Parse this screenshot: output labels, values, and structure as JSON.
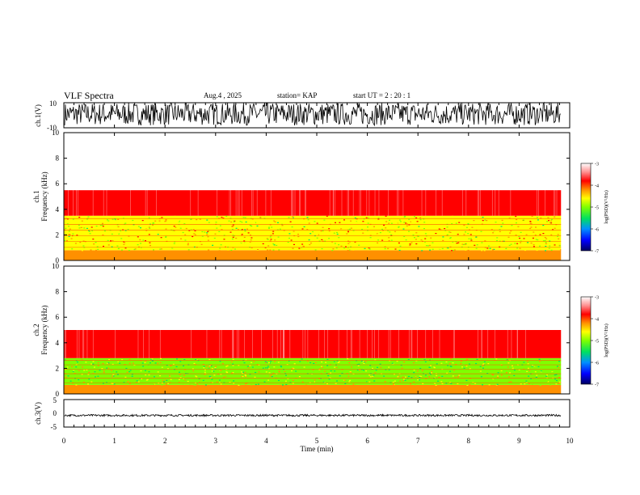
{
  "header": {
    "title": "VLF Spectra",
    "date": "Aug.4 , 2025",
    "station": "station= KAP",
    "start_ut": "start UT = 2 : 20 : 1"
  },
  "chart_data": [
    {
      "type": "line",
      "panel": "ch1-waveform",
      "ylabel": "ch.1(V)",
      "ylim": [
        -10,
        10
      ],
      "yticks": [
        "10",
        "-10"
      ],
      "xlim": [
        0,
        10
      ],
      "note": "dense saturated noise waveform spanning roughly -8 to +10 V"
    },
    {
      "type": "heatmap",
      "panel": "ch1-spectrogram",
      "ylabel": "ch.1\nFrequency (kHz)",
      "ylim": [
        0,
        10
      ],
      "yticks": [
        "0",
        "2",
        "4",
        "6",
        "8",
        "10"
      ],
      "xlim": [
        0,
        9.83
      ],
      "bands": [
        {
          "from_khz": 0,
          "to_khz": 0.8,
          "level": -4.3
        },
        {
          "from_khz": 0.8,
          "to_khz": 3.5,
          "level": -4.8
        },
        {
          "from_khz": 3.5,
          "to_khz": 5.5,
          "level": -3.8
        },
        {
          "from_khz": 5.5,
          "to_khz": 10,
          "level": -3.3
        }
      ],
      "colorbar": {
        "label": "log(PSD)(V²/Hz)",
        "ticks": [
          "-3",
          "-4",
          "-5",
          "-6",
          "-7"
        ],
        "range": [
          -7,
          -3
        ]
      }
    },
    {
      "type": "heatmap",
      "panel": "ch2-spectrogram",
      "ylabel": "ch.2\nFrequency (kHz)",
      "ylim": [
        0,
        10
      ],
      "yticks": [
        "0",
        "2",
        "4",
        "6",
        "8",
        "10"
      ],
      "xlim": [
        0,
        9.83
      ],
      "bands": [
        {
          "from_khz": 0,
          "to_khz": 0.7,
          "level": -4.3
        },
        {
          "from_khz": 0.7,
          "to_khz": 2.8,
          "level": -5.1
        },
        {
          "from_khz": 2.8,
          "to_khz": 5,
          "level": -3.8
        },
        {
          "from_khz": 5,
          "to_khz": 10,
          "level": -3.3
        }
      ],
      "colorbar": {
        "label": "log(PSD)(V²/Hz)",
        "ticks": [
          "-3",
          "-4",
          "-5",
          "-6",
          "-7"
        ],
        "range": [
          -7,
          -3
        ]
      }
    },
    {
      "type": "line",
      "panel": "ch3-waveform",
      "ylabel": "ch.3(V)",
      "ylim": [
        -5,
        5
      ],
      "yticks": [
        "5",
        "0",
        "-5"
      ],
      "xlim": [
        0,
        10
      ],
      "values_range": [
        -1.1,
        -0.4
      ],
      "note": "narrow band of noise around -0.7 V"
    }
  ],
  "x_axis": {
    "label": "Time (min)",
    "ticks": [
      "0",
      "1",
      "2",
      "3",
      "4",
      "5",
      "6",
      "7",
      "8",
      "9",
      "10"
    ]
  },
  "colors": {
    "scale": [
      "#000080",
      "#0000ff",
      "#00a0ff",
      "#00ff66",
      "#66ff00",
      "#ffff00",
      "#ff8800",
      "#ff0000",
      "#ff8080",
      "#ffe6e6",
      "#ffffff"
    ]
  }
}
